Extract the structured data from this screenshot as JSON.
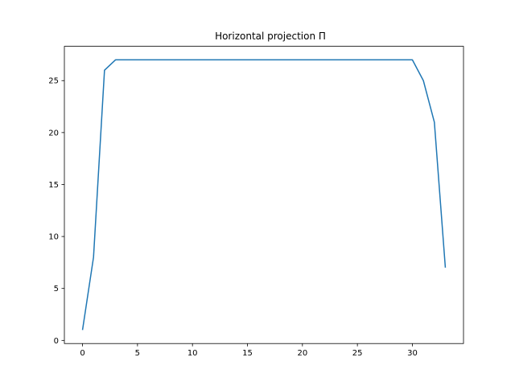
{
  "chart_data": {
    "type": "line",
    "title": "Horizontal projection Π",
    "xlabel": "",
    "ylabel": "",
    "xlim": [
      -1.65,
      34.65
    ],
    "ylim": [
      -0.3,
      28.3
    ],
    "xticks": [
      0,
      5,
      10,
      15,
      20,
      25,
      30
    ],
    "yticks": [
      0,
      5,
      10,
      15,
      20,
      25
    ],
    "grid": false,
    "series": [
      {
        "color": "#1f77b4",
        "x": [
          0,
          1,
          2,
          3,
          4,
          5,
          6,
          7,
          8,
          9,
          10,
          11,
          12,
          13,
          14,
          15,
          16,
          17,
          18,
          19,
          20,
          21,
          22,
          23,
          24,
          25,
          26,
          27,
          28,
          29,
          30,
          31,
          32,
          33
        ],
        "y": [
          1,
          8,
          26,
          27,
          27,
          27,
          27,
          27,
          27,
          27,
          27,
          27,
          27,
          27,
          27,
          27,
          27,
          27,
          27,
          27,
          27,
          27,
          27,
          27,
          27,
          27,
          27,
          27,
          27,
          27,
          27,
          25,
          21,
          7
        ]
      }
    ]
  }
}
